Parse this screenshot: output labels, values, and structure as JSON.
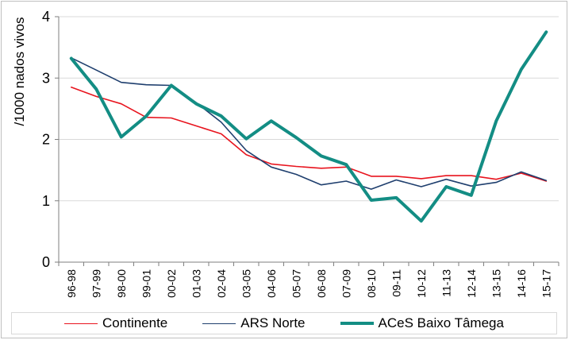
{
  "chart_data": {
    "type": "line",
    "title": "",
    "xlabel": "",
    "ylabel": "/1000 nados vivos",
    "ylim": [
      0,
      4
    ],
    "yticks": [
      0,
      1,
      2,
      3,
      4
    ],
    "grid": "horizontal",
    "legend_position": "bottom",
    "categories": [
      "96-98",
      "97-99",
      "98-00",
      "99-01",
      "00-02",
      "01-03",
      "02-04",
      "03-05",
      "04-06",
      "05-07",
      "06-08",
      "07-09",
      "08-10",
      "09-11",
      "10-12",
      "11-13",
      "12-14",
      "13-15",
      "14-16",
      "15-17"
    ],
    "series": [
      {
        "name": "Continente",
        "color": "#e8141e",
        "width": 1.6,
        "values": [
          2.85,
          2.7,
          2.58,
          2.36,
          2.35,
          2.22,
          2.09,
          1.75,
          1.6,
          1.56,
          1.53,
          1.55,
          1.4,
          1.4,
          1.36,
          1.41,
          1.41,
          1.35,
          1.45,
          1.32
        ]
      },
      {
        "name": "ARS Norte",
        "color": "#1f3f6e",
        "width": 1.6,
        "values": [
          3.33,
          3.13,
          2.93,
          2.89,
          2.88,
          2.6,
          2.28,
          1.82,
          1.55,
          1.43,
          1.26,
          1.32,
          1.19,
          1.34,
          1.23,
          1.35,
          1.24,
          1.3,
          1.47,
          1.33
        ]
      },
      {
        "name": "ACeS Baixo Tâmega",
        "color": "#138d84",
        "width": 4,
        "values": [
          3.32,
          2.82,
          2.04,
          2.38,
          2.88,
          2.58,
          2.38,
          2.01,
          2.3,
          2.03,
          1.73,
          1.59,
          1.01,
          1.05,
          0.67,
          1.23,
          1.09,
          2.3,
          3.14,
          3.75
        ]
      }
    ]
  }
}
